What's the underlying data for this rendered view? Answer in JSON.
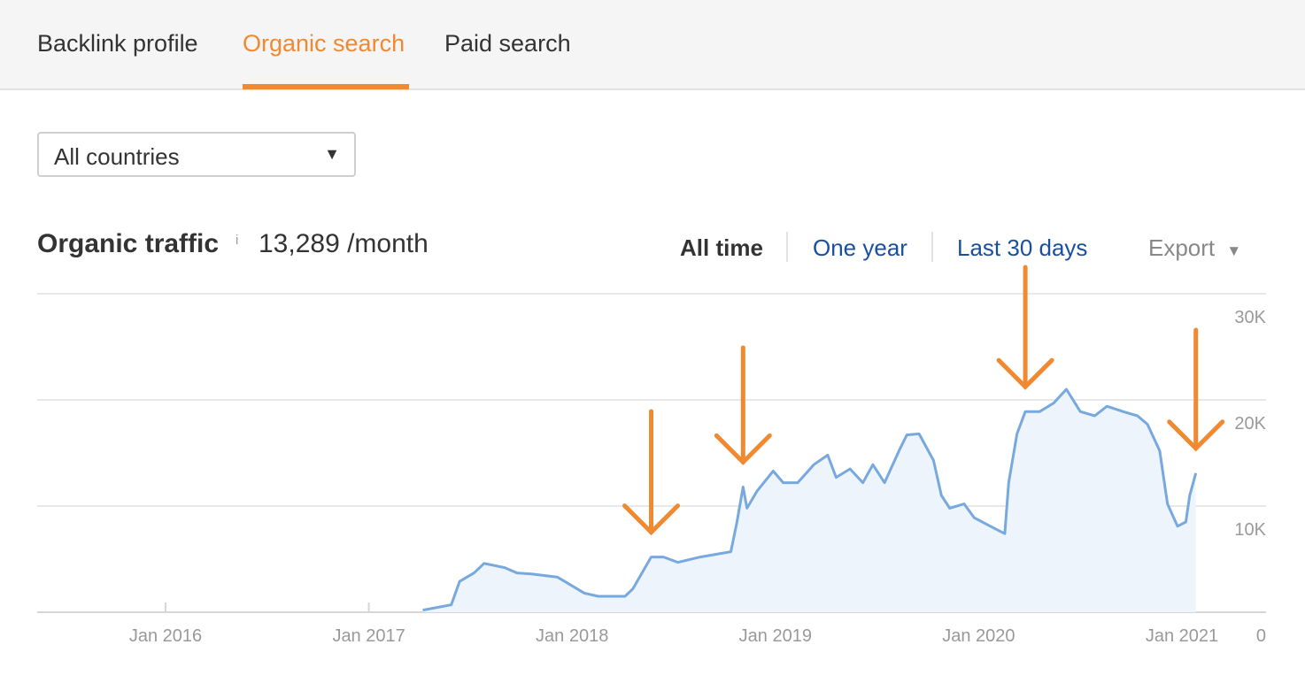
{
  "tabs": [
    {
      "label": "Backlink profile"
    },
    {
      "label": "Organic search",
      "active": true
    },
    {
      "label": "Paid search"
    }
  ],
  "country_select": {
    "value": "All countries"
  },
  "metric": {
    "title": "Organic traffic",
    "info_icon": "i",
    "value": "13,289 /month"
  },
  "ranges": {
    "all_time": "All time",
    "one_year": "One year",
    "last_30_days": "Last 30 days",
    "export": "Export"
  },
  "colors": {
    "accent": "#f0892f",
    "line": "#77a8de",
    "fill": "#eef4fc",
    "link": "#1a4fa0"
  },
  "chart_data": {
    "type": "area",
    "xlabel": "",
    "ylabel": "",
    "x_ticks": [
      "Jan 2016",
      "Jan 2017",
      "Jan 2018",
      "Jan 2019",
      "Jan 2020",
      "Jan 2021"
    ],
    "y_ticks": [
      "0",
      "10K",
      "20K",
      "30K"
    ],
    "ylim": [
      0,
      30000
    ],
    "xlim": [
      "2015-05-15",
      "2021-07-15"
    ],
    "grid": true,
    "y_axis_side": "right",
    "series": [
      {
        "points": [
          [
            "2017-04-08",
            200
          ],
          [
            "2017-05-29",
            700
          ],
          [
            "2017-06-13",
            2900
          ],
          [
            "2017-07-09",
            3700
          ],
          [
            "2017-07-27",
            4600
          ],
          [
            "2017-09-02",
            4200
          ],
          [
            "2017-09-24",
            3700
          ],
          [
            "2017-10-20",
            3600
          ],
          [
            "2017-12-06",
            3300
          ],
          [
            "2018-01-23",
            1800
          ],
          [
            "2018-02-17",
            1500
          ],
          [
            "2018-04-06",
            1500
          ],
          [
            "2018-04-20",
            2200
          ],
          [
            "2018-05-23",
            5200
          ],
          [
            "2018-06-14",
            5200
          ],
          [
            "2018-07-10",
            4700
          ],
          [
            "2018-08-19",
            5200
          ],
          [
            "2018-10-13",
            5700
          ],
          [
            "2018-10-24",
            8500
          ],
          [
            "2018-11-04",
            11800
          ],
          [
            "2018-11-11",
            9800
          ],
          [
            "2018-11-29",
            11400
          ],
          [
            "2018-12-28",
            13300
          ],
          [
            "2019-01-15",
            12200
          ],
          [
            "2019-02-10",
            12200
          ],
          [
            "2019-03-11",
            13900
          ],
          [
            "2019-04-05",
            14800
          ],
          [
            "2019-04-20",
            12700
          ],
          [
            "2019-05-15",
            13500
          ],
          [
            "2019-06-07",
            12200
          ],
          [
            "2019-06-25",
            13900
          ],
          [
            "2019-07-16",
            12200
          ],
          [
            "2019-08-11",
            15200
          ],
          [
            "2019-08-25",
            16700
          ],
          [
            "2019-09-16",
            16800
          ],
          [
            "2019-10-12",
            14300
          ],
          [
            "2019-10-26",
            11000
          ],
          [
            "2019-11-10",
            9800
          ],
          [
            "2019-12-06",
            10200
          ],
          [
            "2019-12-24",
            8900
          ],
          [
            "2020-01-22",
            8100
          ],
          [
            "2020-02-17",
            7400
          ],
          [
            "2020-02-24",
            12200
          ],
          [
            "2020-03-10",
            16800
          ],
          [
            "2020-03-25",
            18900
          ],
          [
            "2020-04-20",
            18900
          ],
          [
            "2020-05-15",
            19700
          ],
          [
            "2020-06-07",
            21000
          ],
          [
            "2020-07-02",
            18900
          ],
          [
            "2020-07-28",
            18500
          ],
          [
            "2020-08-19",
            19400
          ],
          [
            "2020-09-17",
            18900
          ],
          [
            "2020-10-13",
            18500
          ],
          [
            "2020-10-31",
            17700
          ],
          [
            "2020-11-22",
            15200
          ],
          [
            "2020-12-06",
            10200
          ],
          [
            "2020-12-24",
            8100
          ],
          [
            "2021-01-08",
            8500
          ],
          [
            "2021-01-15",
            11000
          ],
          [
            "2021-01-26",
            13100
          ]
        ]
      }
    ],
    "annotations": [
      {
        "type": "arrow-down",
        "date": "2018-05-23"
      },
      {
        "type": "arrow-down",
        "date": "2018-11-04"
      },
      {
        "type": "arrow-down",
        "date": "2020-03-25"
      },
      {
        "type": "arrow-down",
        "date": "2021-01-26"
      }
    ]
  }
}
